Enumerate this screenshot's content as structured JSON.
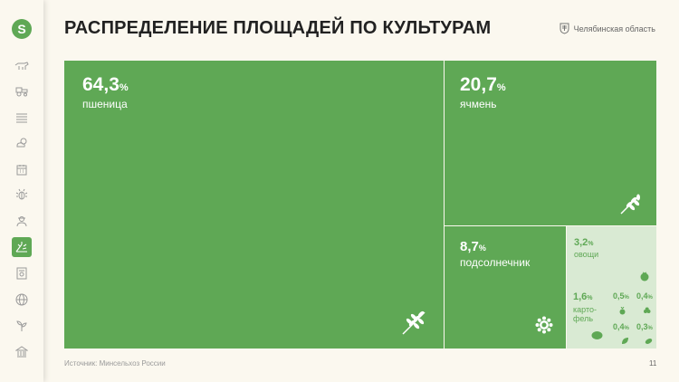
{
  "header": {
    "title": "РАСПРЕДЕЛЕНИЕ ПЛОЩАДЕЙ ПО КУЛЬТУРАМ",
    "region": "Челябинская область"
  },
  "sidebar": {
    "logo_letter": "S",
    "items": [
      {
        "icon": "cow-icon"
      },
      {
        "icon": "tractor-icon"
      },
      {
        "icon": "field-icon"
      },
      {
        "icon": "weather-icon"
      },
      {
        "icon": "calendar-icon"
      },
      {
        "icon": "bug-icon"
      },
      {
        "icon": "farmer-icon"
      },
      {
        "icon": "crops-icon",
        "active": true
      },
      {
        "icon": "documents-icon"
      },
      {
        "icon": "globe-icon"
      },
      {
        "icon": "sprout-icon"
      },
      {
        "icon": "bank-icon"
      }
    ]
  },
  "tiles": {
    "wheat": {
      "value": "64,3",
      "unit": "%",
      "label": "пшеница"
    },
    "barley": {
      "value": "20,7",
      "unit": "%",
      "label": "ячмень"
    },
    "sunflower": {
      "value": "8,7",
      "unit": "%",
      "label": "подсолнечник"
    },
    "vegetables": {
      "value": "3,2",
      "unit": "%",
      "label": "овощи"
    },
    "potato": {
      "value": "1,6",
      "unit": "%",
      "label1": "карто-",
      "label2": "фель"
    },
    "small_a": {
      "value": "0,5",
      "unit": "%"
    },
    "small_b": {
      "value": "0,4",
      "unit": "%"
    },
    "small_c": {
      "value": "0,4",
      "unit": "%"
    },
    "small_d": {
      "value": "0,3",
      "unit": "%"
    }
  },
  "footer": {
    "source": "Источник: Минсельхоз России",
    "page": "11"
  },
  "colors": {
    "accent": "#5fa855",
    "light": "#d9ead3",
    "background": "#fbf8ef"
  }
}
